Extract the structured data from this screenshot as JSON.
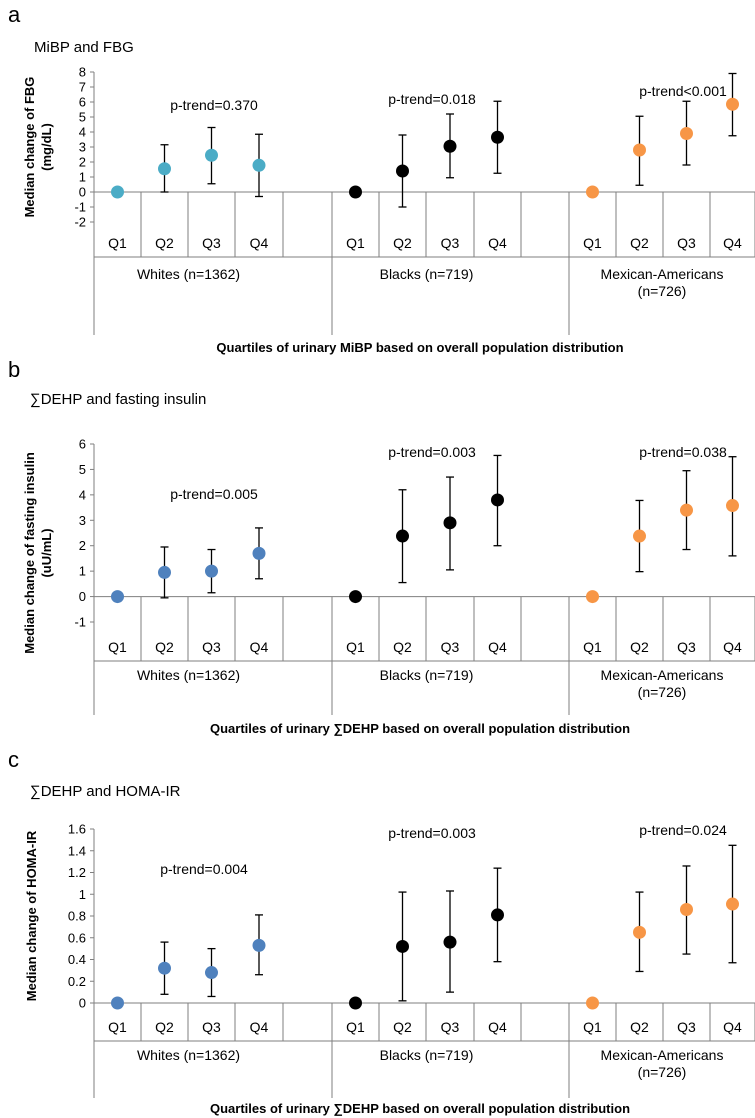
{
  "chart_data": [
    {
      "panel": "a",
      "type": "scatter",
      "title": "MiBP and FBG",
      "ylabel": "Median change of FBG (mg/dL)",
      "xlabel": "Quartiles of urinary MiBP based on overall population distribution",
      "ylim": [
        -2,
        8
      ],
      "yticks": [
        -2,
        -1,
        0,
        1,
        2,
        3,
        4,
        5,
        6,
        7,
        8
      ],
      "categories": [
        "Q1",
        "Q2",
        "Q3",
        "Q4"
      ],
      "groups": [
        {
          "name": "Whites (n=1362)",
          "color": "#4bacc6",
          "p_trend": "p-trend=0.370",
          "values": [
            0,
            1.55,
            2.45,
            1.78
          ],
          "lower": [
            null,
            0,
            0.55,
            -0.3
          ],
          "upper": [
            null,
            3.15,
            4.3,
            3.85
          ]
        },
        {
          "name": "Blacks (n=719)",
          "color": "#000000",
          "p_trend": "p-trend=0.018",
          "values": [
            0,
            1.4,
            3.05,
            3.65
          ],
          "lower": [
            null,
            -1.0,
            0.95,
            1.25
          ],
          "upper": [
            null,
            3.8,
            5.2,
            6.05
          ]
        },
        {
          "name": "Mexican-Americans (n=726)",
          "color": "#f79646",
          "p_trend": "p-trend<0.001",
          "values": [
            0,
            2.8,
            3.9,
            5.85
          ],
          "lower": [
            null,
            0.45,
            1.8,
            3.75
          ],
          "upper": [
            null,
            5.05,
            6.05,
            7.9
          ]
        }
      ]
    },
    {
      "panel": "b",
      "type": "scatter",
      "title": "∑DEHP and fasting insulin",
      "ylabel": "Median change of fasting insulin (uU/mL)",
      "xlabel": "Quartiles of urinary ∑DEHP based on overall population distribution",
      "ylim": [
        -1,
        6
      ],
      "yticks": [
        -1,
        0,
        1,
        2,
        3,
        4,
        5,
        6
      ],
      "categories": [
        "Q1",
        "Q2",
        "Q3",
        "Q4"
      ],
      "groups": [
        {
          "name": "Whites (n=1362)",
          "color": "#4f81bd",
          "p_trend": "p-trend=0.005",
          "values": [
            0,
            0.95,
            1.0,
            1.7
          ],
          "lower": [
            null,
            -0.05,
            0.15,
            0.7
          ],
          "upper": [
            null,
            1.95,
            1.85,
            2.7
          ]
        },
        {
          "name": "Blacks (n=719)",
          "color": "#000000",
          "p_trend": "p-trend=0.003",
          "values": [
            0,
            2.38,
            2.9,
            3.8
          ],
          "lower": [
            null,
            0.55,
            1.05,
            2.0
          ],
          "upper": [
            null,
            4.2,
            4.7,
            5.55
          ]
        },
        {
          "name": "Mexican-Americans (n=726)",
          "color": "#f79646",
          "p_trend": "p-trend=0.038",
          "values": [
            0,
            2.38,
            3.4,
            3.58
          ],
          "lower": [
            null,
            0.98,
            1.85,
            1.6
          ],
          "upper": [
            null,
            3.78,
            4.95,
            5.5
          ]
        }
      ]
    },
    {
      "panel": "c",
      "type": "scatter",
      "title": "∑DEHP and HOMA-IR",
      "ylabel": "Median change of HOMA-IR",
      "xlabel": "Quartiles of urinary ∑DEHP based on overall population distribution",
      "ylim": [
        0,
        1.6
      ],
      "yticks": [
        0,
        0.2,
        0.4,
        0.6,
        0.8,
        1,
        1.2,
        1.4,
        1.6
      ],
      "categories": [
        "Q1",
        "Q2",
        "Q3",
        "Q4"
      ],
      "groups": [
        {
          "name": "Whites (n=1362)",
          "color": "#4f81bd",
          "p_trend": "p-trend=0.004",
          "values": [
            0,
            0.32,
            0.28,
            0.53
          ],
          "lower": [
            null,
            0.08,
            0.06,
            0.26
          ],
          "upper": [
            null,
            0.56,
            0.5,
            0.81
          ]
        },
        {
          "name": "Blacks (n=719)",
          "color": "#000000",
          "p_trend": "p-trend=0.003",
          "values": [
            0,
            0.52,
            0.56,
            0.81
          ],
          "lower": [
            null,
            0.02,
            0.1,
            0.38
          ],
          "upper": [
            null,
            1.02,
            1.03,
            1.24
          ]
        },
        {
          "name": "Mexican-Americans (n=726)",
          "color": "#f79646",
          "p_trend": "p-trend=0.024",
          "values": [
            0,
            0.65,
            0.86,
            0.91
          ],
          "lower": [
            null,
            0.29,
            0.45,
            0.37
          ],
          "upper": [
            null,
            1.02,
            1.26,
            1.45
          ]
        }
      ]
    }
  ]
}
